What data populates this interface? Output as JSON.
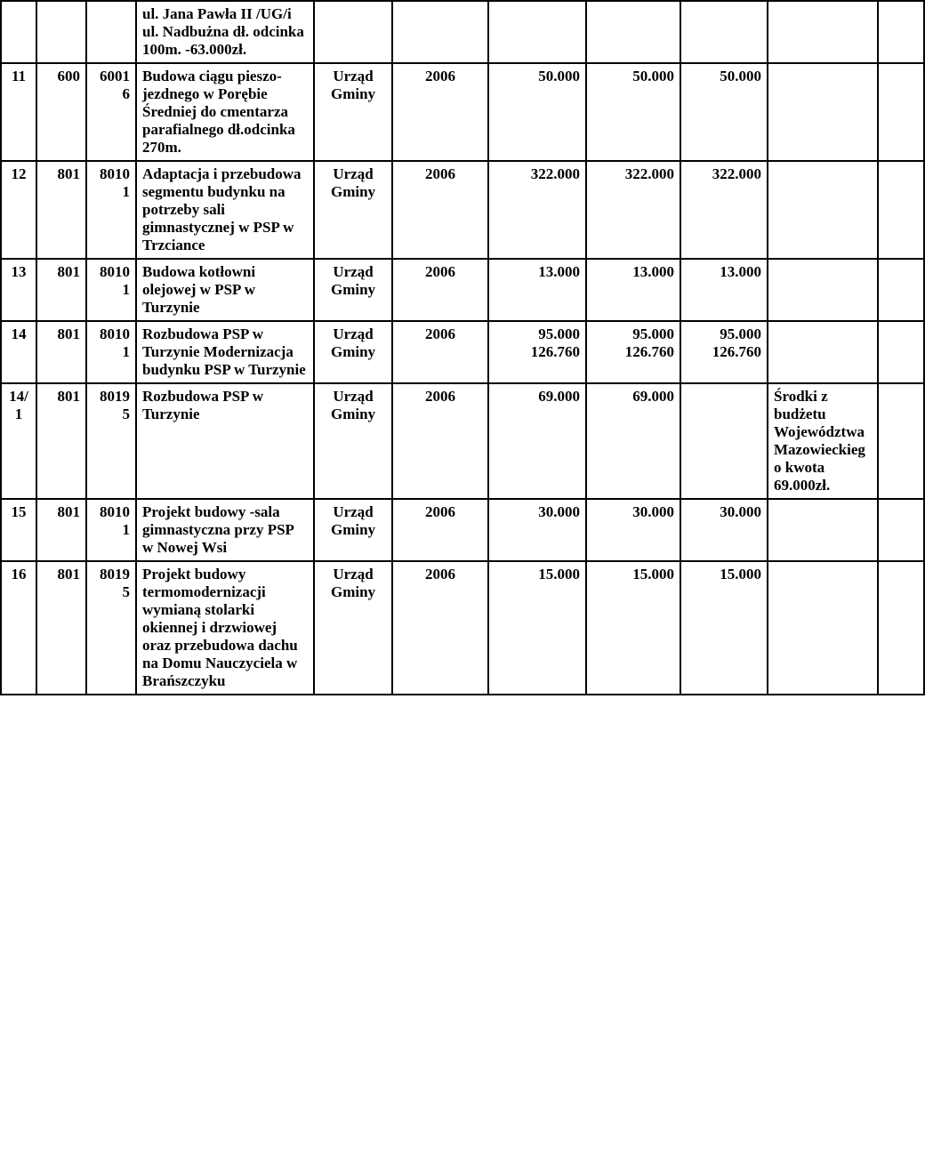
{
  "colors": {
    "border": "#000000",
    "background": "#ffffff",
    "text": "#000000"
  },
  "rows": [
    {
      "lp": "",
      "dzial": "",
      "rozdzial": "",
      "nazwa": " ul. Jana Pawła II /UG/i ul. Nadbużna dł. odcinka 100m. -63.000zł.",
      "jednostka": "",
      "rok": "",
      "val1": "",
      "val2": "",
      "val3": "",
      "uwagi": "",
      "last": ""
    },
    {
      "lp": "11",
      "dzial": "600",
      "rozdzial": "60016",
      "nazwa": "Budowa ciągu pieszo-jezdnego w Porębie Średniej do cmentarza parafialnego dł.odcinka 270m.",
      "jednostka": "Urząd Gminy",
      "rok": "2006",
      "val1": "50.000",
      "val2": "50.000",
      "val3": "50.000",
      "uwagi": "",
      "last": ""
    },
    {
      "lp": "12",
      "dzial": "801",
      "rozdzial": "80101",
      "nazwa": "Adaptacja i przebudowa segmentu budynku na potrzeby sali gimnastycznej w PSP w Trzciance",
      "jednostka": "Urząd Gminy",
      "rok": "2006",
      "val1": "322.000",
      "val2": "322.000",
      "val3": "322.000",
      "uwagi": "",
      "last": ""
    },
    {
      "lp": "13",
      "dzial": "801",
      "rozdzial": "80101",
      "nazwa": "Budowa  kotłowni olejowej w   PSP w Turzynie",
      "jednostka": "Urząd Gminy",
      "rok": "2006",
      "val1": "13.000",
      "val2": "13.000",
      "val3": "13.000",
      "uwagi": "",
      "last": ""
    },
    {
      "lp": "14",
      "dzial": "801",
      "rozdzial": "80101",
      "nazwa": "Rozbudowa PSP w Turzynie Modernizacja budynku PSP w Turzynie",
      "jednostka": "Urząd Gminy",
      "rok": "2006",
      "val1": "95.000 126.760",
      "val2": "95.000 126.760",
      "val3": "95.000 126.760",
      "uwagi": "",
      "last": ""
    },
    {
      "lp": "14/1",
      "dzial": "801",
      "rozdzial": "80195",
      "nazwa": "Rozbudowa PSP w Turzynie",
      "jednostka": "Urząd Gminy",
      "rok": "2006",
      "val1": "69.000",
      "val2": "69.000",
      "val3": "",
      "uwagi": "Środki z budżetu Województwa Mazowieckiego kwota 69.000zł.",
      "last": ""
    },
    {
      "lp": "15",
      "dzial": "801",
      "rozdzial": "80101",
      "nazwa": "Projekt budowy -sala gimnastyczna przy PSP w Nowej Wsi",
      "jednostka": "Urząd Gminy",
      "rok": "2006",
      "val1": "30.000",
      "val2": "30.000",
      "val3": "30.000",
      "uwagi": "",
      "last": ""
    },
    {
      "lp": "16",
      "dzial": "801",
      "rozdzial": "80195",
      "nazwa": "Projekt budowy termomodernizacji  wymianą stolarki okiennej i drzwiowej oraz przebudowa dachu na Domu Nauczyciela w Brańszczyku",
      "jednostka": "Urząd Gminy",
      "rok": "2006",
      "val1": "15.000",
      "val2": "15.000",
      "val3": "15.000",
      "uwagi": "",
      "last": ""
    }
  ]
}
